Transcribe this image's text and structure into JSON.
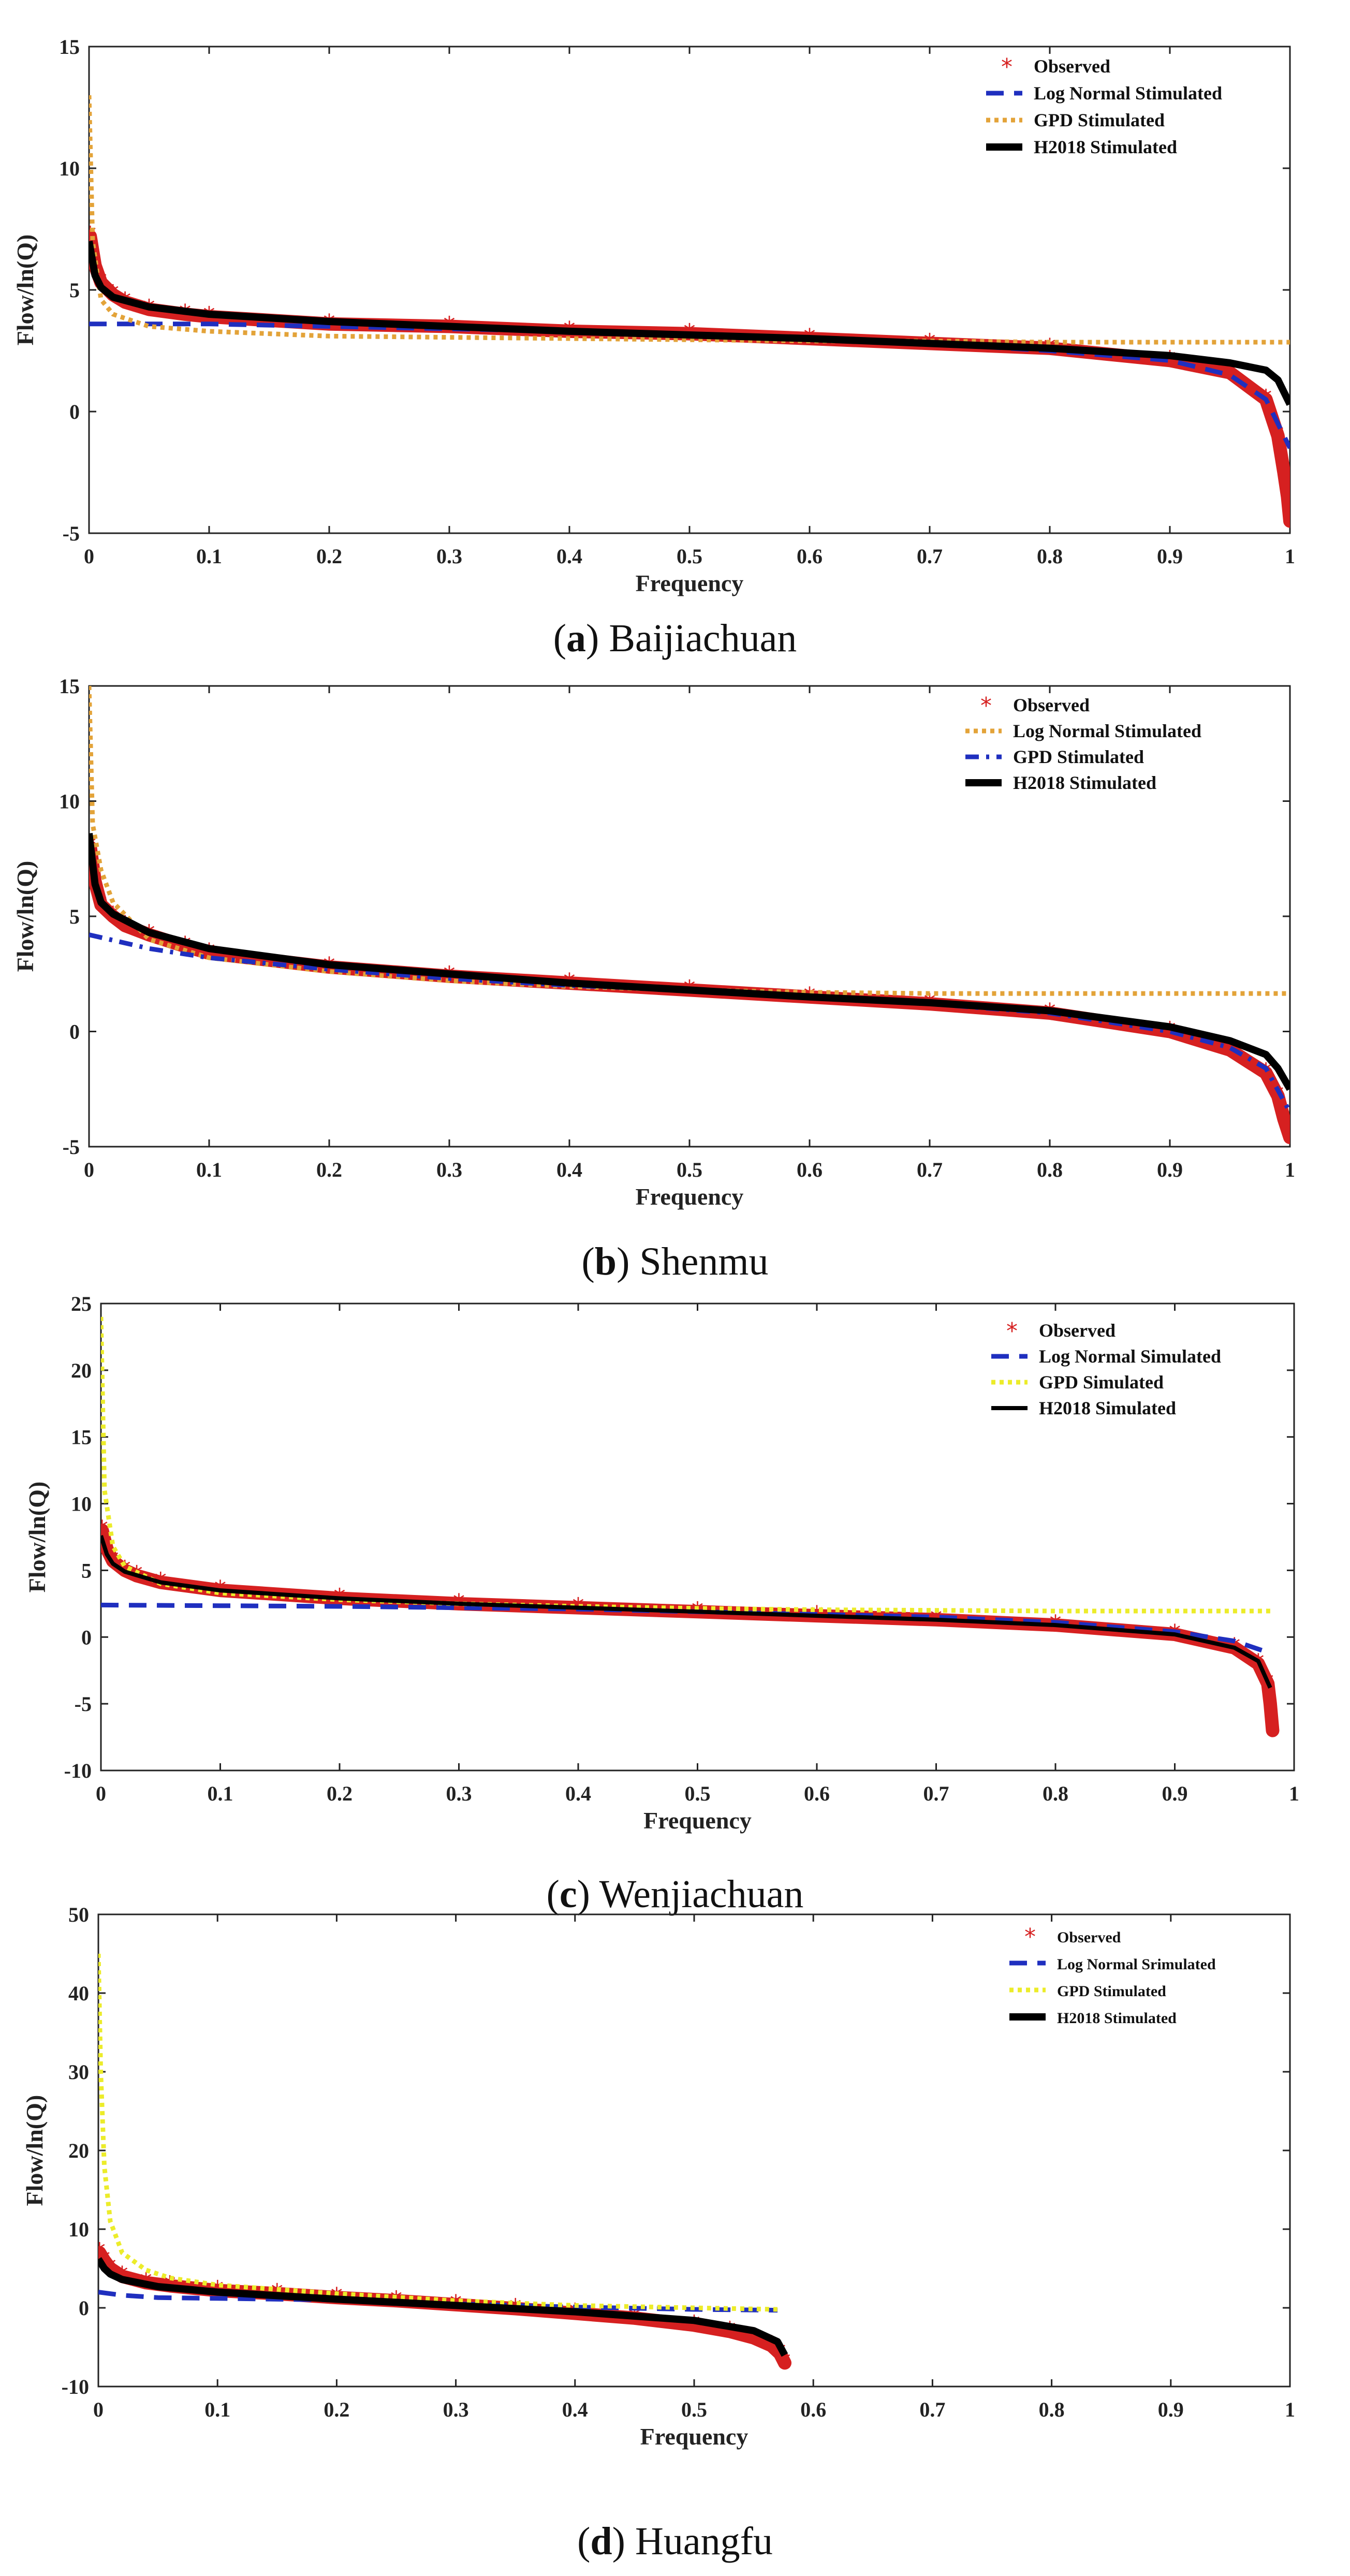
{
  "chart_data": [
    {
      "type": "line",
      "id": "a",
      "caption": {
        "letter": "a",
        "name": "Baijiachuan"
      },
      "xlabel": "Frequency",
      "ylabel": "Flow/ln(Q)",
      "xlim": [
        0,
        1
      ],
      "ylim": [
        -5,
        15
      ],
      "xticks": [
        0,
        0.1,
        0.2,
        0.3,
        0.4,
        0.5,
        0.6,
        0.7,
        0.8,
        0.9,
        1
      ],
      "xtick_labels": [
        "0",
        "0.1",
        "0.2",
        "0.3",
        "0.4",
        "0.5",
        "0.6",
        "0.7",
        "0.8",
        "0.9",
        "1"
      ],
      "yticks": [
        -5,
        0,
        5,
        10,
        15
      ],
      "ytick_labels": [
        "-5",
        "0",
        "5",
        "10",
        "15"
      ],
      "legend_position": "top-right",
      "series": [
        {
          "name": "Observed",
          "style": "marker",
          "color": "#d62020",
          "x": [
            0.001,
            0.005,
            0.01,
            0.02,
            0.03,
            0.05,
            0.08,
            0.1,
            0.2,
            0.3,
            0.4,
            0.5,
            0.6,
            0.7,
            0.8,
            0.9,
            0.95,
            0.98,
            0.99,
            0.995,
            0.998,
            1.0
          ],
          "y": [
            7.2,
            6.0,
            5.3,
            4.8,
            4.5,
            4.2,
            4.0,
            3.9,
            3.6,
            3.5,
            3.3,
            3.2,
            3.0,
            2.8,
            2.6,
            2.1,
            1.6,
            0.5,
            -1.0,
            -2.5,
            -3.5,
            -4.5
          ]
        },
        {
          "name": "Log Normal Stimulated",
          "style": "dash",
          "color": "#1f2fbf",
          "x": [
            0,
            0.05,
            0.1,
            0.2,
            0.3,
            0.4,
            0.5,
            0.6,
            0.7,
            0.8,
            0.9,
            0.95,
            0.98,
            1.0
          ],
          "y": [
            3.6,
            3.6,
            3.6,
            3.5,
            3.4,
            3.3,
            3.15,
            3.0,
            2.8,
            2.5,
            2.1,
            1.5,
            0.5,
            -1.5
          ]
        },
        {
          "name": "GPD Stimulated",
          "style": "dot",
          "color": "#e3a339",
          "x": [
            0.0,
            0.003,
            0.01,
            0.02,
            0.05,
            0.1,
            0.2,
            0.3,
            0.4,
            0.5,
            0.6,
            0.7,
            0.8,
            0.9,
            1.0
          ],
          "y": [
            13.0,
            7.0,
            4.6,
            4.0,
            3.5,
            3.3,
            3.1,
            3.05,
            3.0,
            2.95,
            2.9,
            2.9,
            2.85,
            2.85,
            2.85
          ]
        },
        {
          "name": "H2018 Stimulated",
          "style": "solid",
          "color": "#000000",
          "x": [
            0.0,
            0.005,
            0.01,
            0.02,
            0.05,
            0.1,
            0.2,
            0.3,
            0.4,
            0.5,
            0.6,
            0.7,
            0.8,
            0.9,
            0.95,
            0.98,
            0.99,
            1.0
          ],
          "y": [
            7.0,
            5.6,
            5.1,
            4.7,
            4.3,
            4.0,
            3.7,
            3.5,
            3.3,
            3.15,
            3.0,
            2.8,
            2.6,
            2.3,
            2.0,
            1.7,
            1.3,
            0.3
          ]
        }
      ]
    },
    {
      "type": "line",
      "id": "b",
      "caption": {
        "letter": "b",
        "name": "Shenmu"
      },
      "xlabel": "Frequency",
      "ylabel": "Flow/ln(Q)",
      "xlim": [
        0,
        1
      ],
      "ylim": [
        -5,
        15
      ],
      "xticks": [
        0,
        0.1,
        0.2,
        0.3,
        0.4,
        0.5,
        0.6,
        0.7,
        0.8,
        0.9,
        1
      ],
      "xtick_labels": [
        "0",
        "0.1",
        "0.2",
        "0.3",
        "0.4",
        "0.5",
        "0.6",
        "0.7",
        "0.8",
        "0.9",
        "1"
      ],
      "yticks": [
        -5,
        0,
        5,
        10,
        15
      ],
      "ytick_labels": [
        "-5",
        "0",
        "5",
        "10",
        "15"
      ],
      "legend_position": "top-right",
      "series": [
        {
          "name": "Observed",
          "style": "marker",
          "color": "#d62020",
          "x": [
            0.001,
            0.005,
            0.01,
            0.02,
            0.03,
            0.05,
            0.08,
            0.1,
            0.2,
            0.3,
            0.4,
            0.5,
            0.6,
            0.7,
            0.8,
            0.9,
            0.95,
            0.98,
            0.99,
            0.995,
            1.0
          ],
          "y": [
            8.0,
            6.5,
            5.5,
            5.0,
            4.6,
            4.2,
            3.7,
            3.4,
            2.8,
            2.4,
            2.1,
            1.8,
            1.5,
            1.2,
            0.8,
            0.0,
            -0.8,
            -1.8,
            -2.8,
            -3.8,
            -4.6
          ]
        },
        {
          "name": "Log Normal Stimulated",
          "style": "dot",
          "color": "#e3a339",
          "x": [
            0.0,
            0.003,
            0.01,
            0.02,
            0.05,
            0.1,
            0.2,
            0.3,
            0.4,
            0.5,
            0.6,
            0.7,
            0.8,
            0.9,
            1.0
          ],
          "y": [
            15.0,
            9.0,
            7.0,
            5.6,
            4.0,
            3.2,
            2.6,
            2.2,
            1.95,
            1.8,
            1.7,
            1.65,
            1.65,
            1.65,
            1.65
          ]
        },
        {
          "name": "GPD Stimulated",
          "style": "dashdot",
          "color": "#1f2fbf",
          "x": [
            0,
            0.05,
            0.1,
            0.2,
            0.3,
            0.4,
            0.5,
            0.6,
            0.7,
            0.8,
            0.9,
            0.95,
            0.98,
            1.0
          ],
          "y": [
            4.2,
            3.6,
            3.2,
            2.7,
            2.3,
            2.0,
            1.8,
            1.5,
            1.2,
            0.8,
            0.0,
            -0.7,
            -1.6,
            -3.5
          ]
        },
        {
          "name": "H2018 Stimulated",
          "style": "solid",
          "color": "#000000",
          "x": [
            0.0,
            0.005,
            0.01,
            0.02,
            0.05,
            0.1,
            0.2,
            0.3,
            0.4,
            0.5,
            0.6,
            0.7,
            0.8,
            0.9,
            0.95,
            0.98,
            0.99,
            1.0
          ],
          "y": [
            8.6,
            6.4,
            5.6,
            5.1,
            4.3,
            3.6,
            2.9,
            2.5,
            2.1,
            1.8,
            1.5,
            1.25,
            0.9,
            0.2,
            -0.4,
            -1.0,
            -1.6,
            -2.5
          ]
        }
      ]
    },
    {
      "type": "line",
      "id": "c",
      "caption": {
        "letter": "c",
        "name": "Wenjiachuan"
      },
      "xlabel": "Frequency",
      "ylabel": "Flow/ln(Q)",
      "xlim": [
        0,
        1
      ],
      "ylim": [
        -10,
        25
      ],
      "xticks": [
        0,
        0.1,
        0.2,
        0.3,
        0.4,
        0.5,
        0.6,
        0.7,
        0.8,
        0.9,
        1
      ],
      "xtick_labels": [
        "0",
        "0.1",
        "0.2",
        "0.3",
        "0.4",
        "0.5",
        "0.6",
        "0.7",
        "0.8",
        "0.9",
        "1"
      ],
      "yticks": [
        -10,
        -5,
        0,
        5,
        10,
        15,
        20,
        25
      ],
      "ytick_labels": [
        "-10",
        "-5",
        "0",
        "5",
        "10",
        "15",
        "20",
        "25"
      ],
      "legend_position": "top-right",
      "series": [
        {
          "name": "Observed",
          "style": "marker",
          "color": "#d62020",
          "x": [
            0.001,
            0.005,
            0.01,
            0.02,
            0.03,
            0.05,
            0.1,
            0.2,
            0.3,
            0.4,
            0.5,
            0.6,
            0.7,
            0.8,
            0.9,
            0.95,
            0.97,
            0.978,
            0.98,
            0.982
          ],
          "y": [
            8.0,
            6.6,
            5.7,
            5.0,
            4.6,
            4.1,
            3.5,
            2.9,
            2.5,
            2.2,
            1.9,
            1.6,
            1.3,
            0.9,
            0.2,
            -0.8,
            -2.0,
            -3.5,
            -5.0,
            -7.0
          ]
        },
        {
          "name": "Log Normal Simulated",
          "style": "dash",
          "color": "#1f2fbf",
          "x": [
            0.0,
            0.1,
            0.2,
            0.3,
            0.4,
            0.5,
            0.6,
            0.7,
            0.8,
            0.9,
            0.95,
            0.98
          ],
          "y": [
            2.4,
            2.35,
            2.3,
            2.2,
            2.1,
            1.9,
            1.7,
            1.5,
            1.1,
            0.4,
            -0.3,
            -1.2
          ]
        },
        {
          "name": "GPD Simulated",
          "style": "dot",
          "color": "#ecec2a",
          "x": [
            0.0,
            0.003,
            0.01,
            0.02,
            0.05,
            0.1,
            0.2,
            0.3,
            0.4,
            0.5,
            0.6,
            0.7,
            0.8,
            0.9,
            0.98
          ],
          "y": [
            24.0,
            11.0,
            6.8,
            5.3,
            4.0,
            3.3,
            2.8,
            2.5,
            2.3,
            2.15,
            2.05,
            2.0,
            1.95,
            1.95,
            1.95
          ]
        },
        {
          "name": "H2018 Simulated",
          "style": "solid-thin",
          "color": "#000000",
          "x": [
            0.0,
            0.005,
            0.01,
            0.02,
            0.05,
            0.1,
            0.2,
            0.3,
            0.4,
            0.5,
            0.6,
            0.7,
            0.8,
            0.9,
            0.95,
            0.97,
            0.98
          ],
          "y": [
            7.6,
            6.2,
            5.5,
            4.9,
            4.1,
            3.5,
            2.9,
            2.5,
            2.2,
            1.9,
            1.6,
            1.3,
            0.9,
            0.2,
            -0.8,
            -1.8,
            -3.8
          ]
        }
      ]
    },
    {
      "type": "line",
      "id": "d",
      "caption": {
        "letter": "d",
        "name": "Huangfu"
      },
      "xlabel": "Frequency",
      "ylabel": "Flow/ln(Q)",
      "xlim": [
        0,
        1
      ],
      "ylim": [
        -10,
        50
      ],
      "xticks": [
        0,
        0.1,
        0.2,
        0.3,
        0.4,
        0.5,
        0.6,
        0.7,
        0.8,
        0.9,
        1
      ],
      "xtick_labels": [
        "0",
        "0.1",
        "0.2",
        "0.3",
        "0.4",
        "0.5",
        "0.6",
        "0.7",
        "0.8",
        "0.9",
        "1"
      ],
      "yticks": [
        -10,
        0,
        10,
        20,
        30,
        40,
        50
      ],
      "ytick_labels": [
        "-10",
        "0",
        "10",
        "20",
        "30",
        "40",
        "50"
      ],
      "legend_position": "top-right",
      "series": [
        {
          "name": "Observed",
          "style": "marker",
          "color": "#d62020",
          "x": [
            0.001,
            0.005,
            0.01,
            0.02,
            0.04,
            0.06,
            0.1,
            0.15,
            0.2,
            0.25,
            0.3,
            0.35,
            0.4,
            0.45,
            0.5,
            0.53,
            0.55,
            0.565,
            0.572,
            0.576
          ],
          "y": [
            7.0,
            6.0,
            5.0,
            4.0,
            3.2,
            2.8,
            2.2,
            1.8,
            1.3,
            0.9,
            0.4,
            -0.1,
            -0.7,
            -1.3,
            -2.2,
            -3.0,
            -3.8,
            -4.8,
            -5.8,
            -7.0
          ]
        },
        {
          "name": "Log Normal Srimulated",
          "style": "dash",
          "color": "#1f2fbf",
          "x": [
            0.0,
            0.02,
            0.05,
            0.1,
            0.2,
            0.3,
            0.4,
            0.5,
            0.57
          ],
          "y": [
            2.0,
            1.6,
            1.3,
            1.2,
            1.0,
            0.5,
            0.1,
            -0.2,
            -0.3
          ]
        },
        {
          "name": "GPD Stimulated",
          "style": "dot",
          "color": "#ecec2a",
          "x": [
            0.0,
            0.002,
            0.005,
            0.01,
            0.02,
            0.04,
            0.06,
            0.1,
            0.2,
            0.3,
            0.4,
            0.5,
            0.57
          ],
          "y": [
            45.0,
            30.0,
            18.0,
            11.0,
            7.0,
            4.8,
            3.8,
            2.9,
            1.8,
            0.9,
            0.3,
            0.0,
            -0.2
          ]
        },
        {
          "name": "H2018 Stimulated",
          "style": "solid",
          "color": "#000000",
          "x": [
            0.0,
            0.005,
            0.01,
            0.02,
            0.05,
            0.1,
            0.2,
            0.3,
            0.4,
            0.5,
            0.55,
            0.57,
            0.576
          ],
          "y": [
            6.2,
            5.0,
            4.3,
            3.6,
            2.7,
            2.0,
            1.1,
            0.3,
            -0.5,
            -1.6,
            -2.9,
            -4.3,
            -6.0
          ]
        }
      ]
    }
  ]
}
